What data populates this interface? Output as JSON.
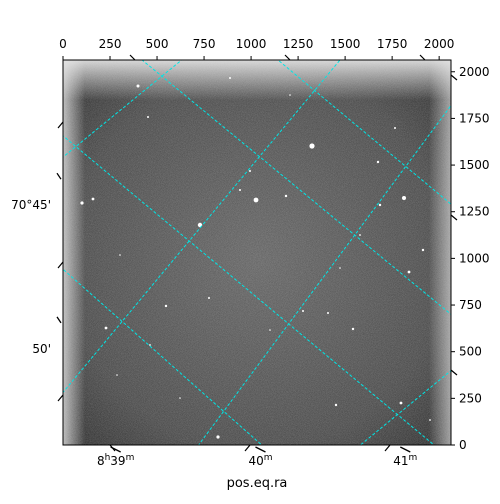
{
  "chart_data": {
    "type": "image",
    "xlabel": "pos.eq.ra",
    "ylabel": "",
    "top_axis": {
      "ticks": [
        0,
        250,
        500,
        750,
        1000,
        1250,
        1500,
        1750,
        2000
      ],
      "xlim": [
        0,
        2063
      ]
    },
    "right_axis": {
      "ticks": [
        0,
        250,
        500,
        750,
        1000,
        1250,
        1500,
        1750,
        2000
      ],
      "ylim": [
        0,
        2063
      ]
    },
    "bottom_labels": [
      {
        "text": "8h39m",
        "main": "8",
        "sup1": "h",
        "mid": "39",
        "sup2": "m",
        "pixel": 280
      },
      {
        "text": "40m",
        "main": "40",
        "sup1": "m",
        "mid": "",
        "sup2": "",
        "pixel": 1050
      },
      {
        "text": "41m",
        "main": "41",
        "sup1": "m",
        "mid": "",
        "sup2": "",
        "pixel": 1820
      }
    ],
    "left_labels": [
      {
        "text": "70°45'",
        "pixel": 1285
      },
      {
        "text": "50'",
        "pixel": 515
      }
    ],
    "grid": true,
    "colors": {
      "grid": "#00e5e5",
      "image_low": "#111111",
      "image_high": "#ffffff"
    }
  }
}
